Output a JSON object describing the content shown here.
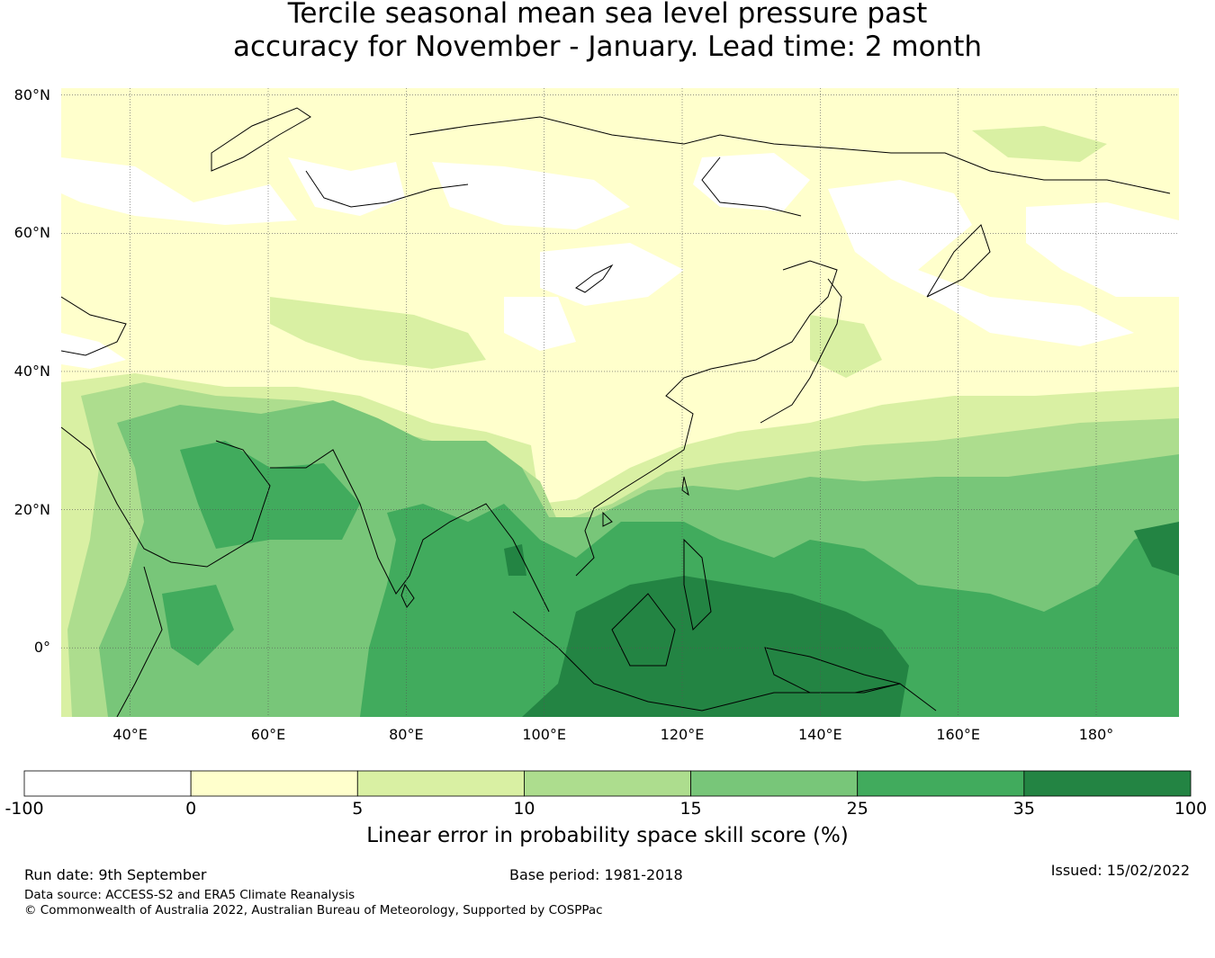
{
  "title": {
    "line1": "Tercile seasonal mean sea level pressure past",
    "line2": "accuracy for November - January. Lead time: 2 month"
  },
  "map": {
    "lat_range": [
      -10,
      81
    ],
    "lon_range": [
      30,
      192
    ],
    "lat_ticks": [
      {
        "value": 80,
        "label": "80°N"
      },
      {
        "value": 60,
        "label": "60°N"
      },
      {
        "value": 40,
        "label": "40°N"
      },
      {
        "value": 20,
        "label": "20°N"
      },
      {
        "value": 0,
        "label": "0°"
      }
    ],
    "lon_ticks": [
      {
        "value": 40,
        "label": "40°E"
      },
      {
        "value": 60,
        "label": "60°E"
      },
      {
        "value": 80,
        "label": "80°E"
      },
      {
        "value": 100,
        "label": "100°E"
      },
      {
        "value": 120,
        "label": "120°E"
      },
      {
        "value": 140,
        "label": "140°E"
      },
      {
        "value": 160,
        "label": "160°E"
      },
      {
        "value": 180,
        "label": "180°"
      }
    ],
    "gridlines": true
  },
  "colorbar": {
    "ticks": [
      "-100",
      "0",
      "5",
      "10",
      "15",
      "25",
      "35",
      "100"
    ],
    "colors": [
      "#ffffff",
      "#ffffcc",
      "#d9f0a3",
      "#addd8e",
      "#78c679",
      "#41ab5d",
      "#238443"
    ],
    "label": "Linear error in probability space skill score (%)"
  },
  "footer": {
    "run_date": "Run date: 9th September",
    "base_period": "Base period: 1981-2018",
    "issued": "Issued: 15/02/2022",
    "data_source": "Data source: ACCESS-S2 and ERA5 Climate Reanalysis",
    "copyright": "© Commonwealth of Australia 2022, Australian Bureau of Meteorology, Supported by COSPPac"
  }
}
